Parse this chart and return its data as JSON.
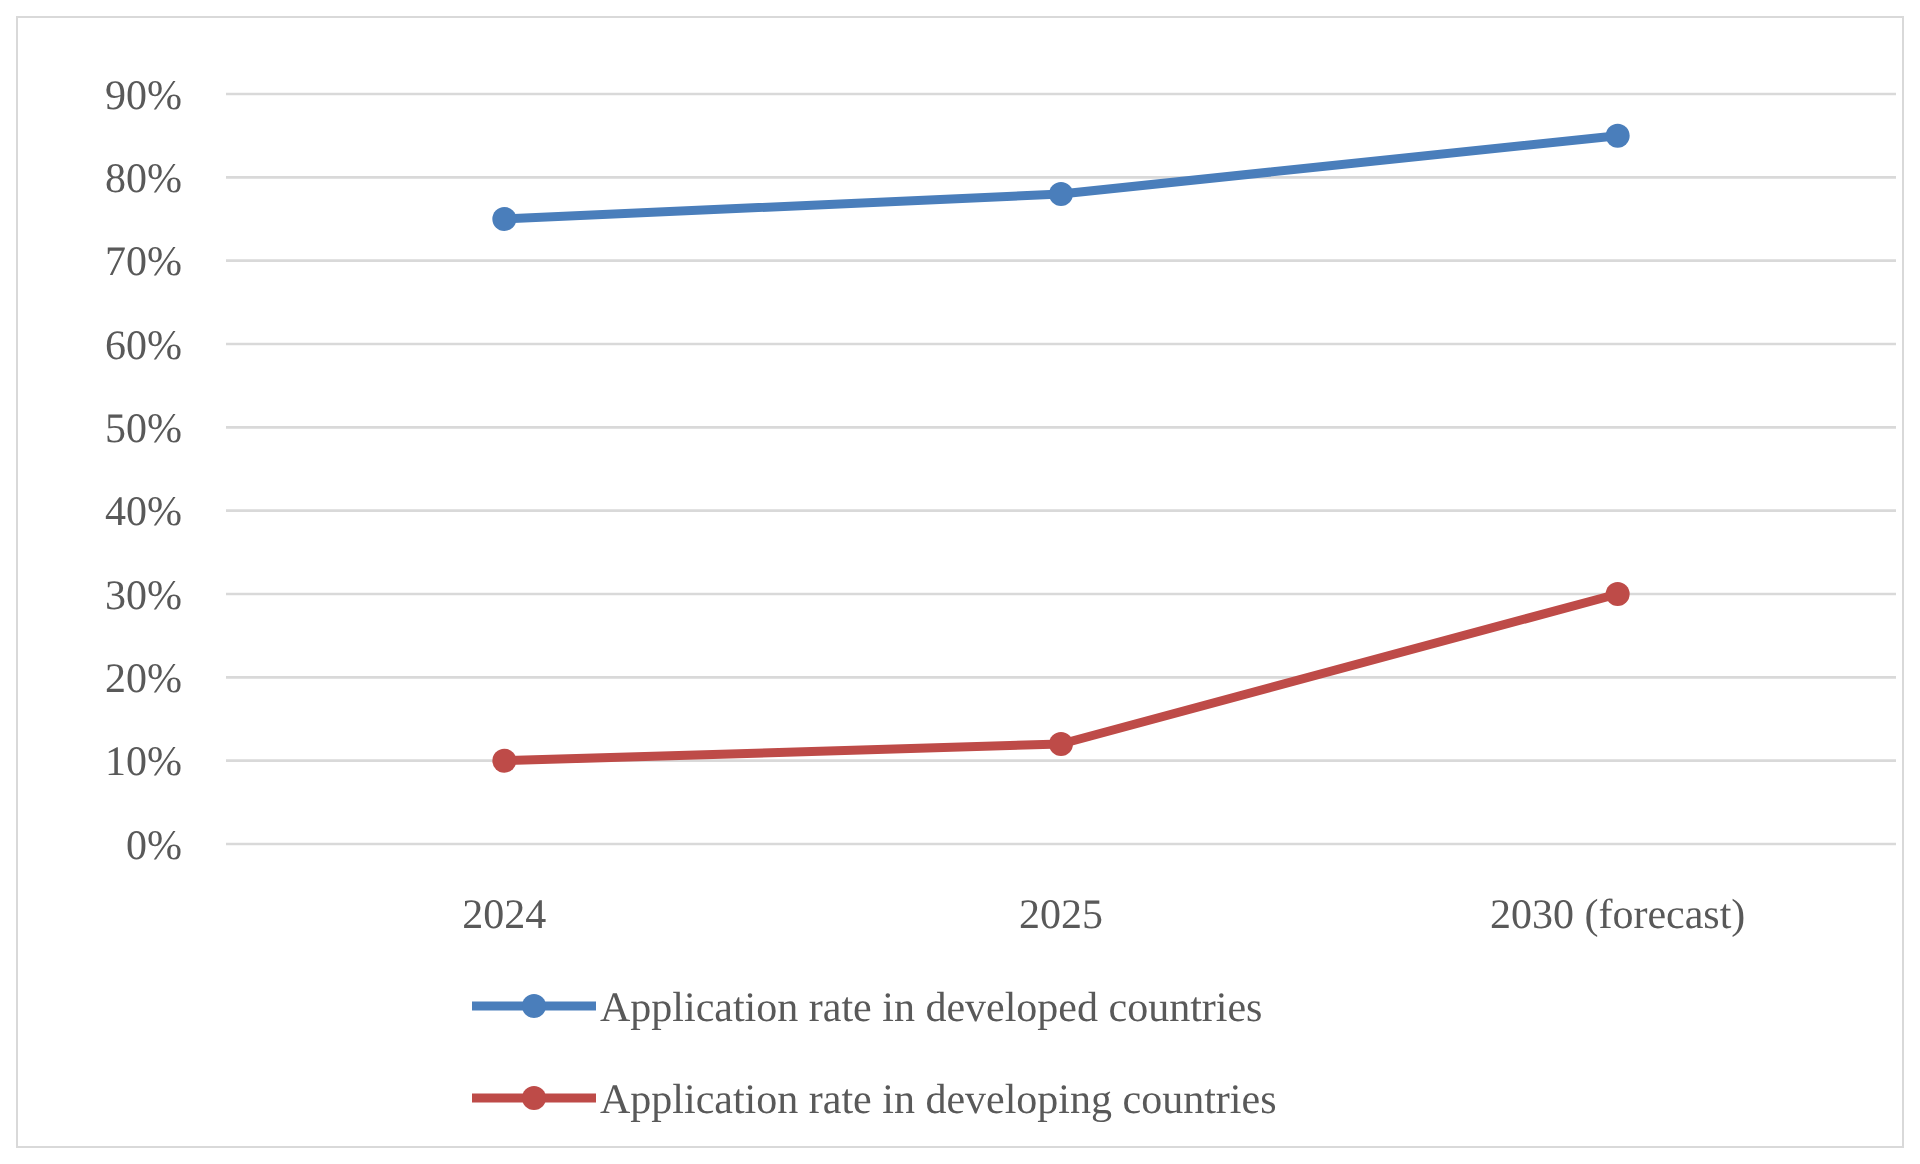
{
  "chart_data": {
    "type": "line",
    "categories": [
      "2024",
      "2025",
      "2030 (forecast)"
    ],
    "series": [
      {
        "name": "Application rate in developed countries",
        "color": "#4a7ebb",
        "values": [
          75,
          78,
          85
        ]
      },
      {
        "name": "Application rate in developing countries",
        "color": "#be4b48",
        "values": [
          10,
          12,
          30
        ]
      }
    ],
    "ylim": [
      0,
      90
    ],
    "yticks": [
      {
        "value": 0,
        "label": "0%"
      },
      {
        "value": 10,
        "label": "10%"
      },
      {
        "value": 20,
        "label": "20%"
      },
      {
        "value": 30,
        "label": "30%"
      },
      {
        "value": 40,
        "label": "40%"
      },
      {
        "value": 50,
        "label": "50%"
      },
      {
        "value": 60,
        "label": "60%"
      },
      {
        "value": 70,
        "label": "70%"
      },
      {
        "value": 80,
        "label": "80%"
      },
      {
        "value": 90,
        "label": "90%"
      }
    ],
    "grid": "y",
    "legend": "bottom",
    "marker": "circle",
    "line_style": "solid"
  }
}
